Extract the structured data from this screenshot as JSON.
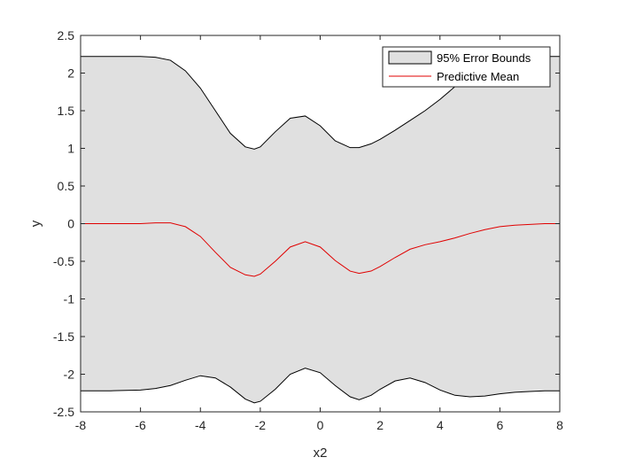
{
  "chart_data": {
    "type": "area",
    "xlabel": "x2",
    "ylabel": "y",
    "xlim": [
      -8,
      8
    ],
    "ylim": [
      -2.5,
      2.5
    ],
    "xticks": [
      "-8",
      "-6",
      "-4",
      "-2",
      "0",
      "2",
      "4",
      "6",
      "8"
    ],
    "yticks": [
      "-2.5",
      "-2",
      "-1.5",
      "-1",
      "-0.5",
      "0",
      "0.5",
      "1",
      "1.5",
      "2",
      "2.5"
    ],
    "grid": false,
    "legend_position": "top-right",
    "legend": [
      "95% Error Bounds",
      "Predictive Mean"
    ],
    "colors": {
      "band_fill": "#e0e0e0",
      "band_edge": "#000000",
      "mean": "#e00000",
      "axes": "#262626"
    },
    "x": [
      -8,
      -7,
      -6,
      -5.5,
      -5,
      -4.5,
      -4,
      -3.5,
      -3,
      -2.5,
      -2.2,
      -2,
      -1.5,
      -1,
      -0.5,
      0,
      0.5,
      1,
      1.3,
      1.7,
      2,
      2.5,
      3,
      3.5,
      4,
      4.5,
      5,
      5.5,
      6,
      6.5,
      7,
      7.5,
      8
    ],
    "series": [
      {
        "name": "95% Error Bounds",
        "upper": [
          2.22,
          2.22,
          2.22,
          2.21,
          2.17,
          2.03,
          1.8,
          1.5,
          1.2,
          1.02,
          0.99,
          1.02,
          1.22,
          1.4,
          1.43,
          1.3,
          1.1,
          1.01,
          1.01,
          1.06,
          1.12,
          1.24,
          1.37,
          1.5,
          1.65,
          1.82,
          1.98,
          2.1,
          2.17,
          2.21,
          2.22,
          2.22,
          2.22
        ],
        "lower": [
          -2.22,
          -2.22,
          -2.21,
          -2.19,
          -2.15,
          -2.08,
          -2.02,
          -2.05,
          -2.17,
          -2.33,
          -2.38,
          -2.36,
          -2.2,
          -2.0,
          -1.92,
          -1.98,
          -2.15,
          -2.3,
          -2.34,
          -2.28,
          -2.2,
          -2.09,
          -2.05,
          -2.11,
          -2.21,
          -2.28,
          -2.3,
          -2.29,
          -2.26,
          -2.24,
          -2.23,
          -2.22,
          -2.22
        ]
      },
      {
        "name": "Predictive Mean",
        "values": [
          0,
          0,
          0,
          0.01,
          0.01,
          -0.04,
          -0.17,
          -0.38,
          -0.58,
          -0.68,
          -0.7,
          -0.67,
          -0.5,
          -0.31,
          -0.24,
          -0.31,
          -0.49,
          -0.63,
          -0.66,
          -0.63,
          -0.57,
          -0.45,
          -0.34,
          -0.28,
          -0.24,
          -0.19,
          -0.13,
          -0.08,
          -0.04,
          -0.02,
          -0.01,
          0,
          0
        ]
      }
    ]
  }
}
